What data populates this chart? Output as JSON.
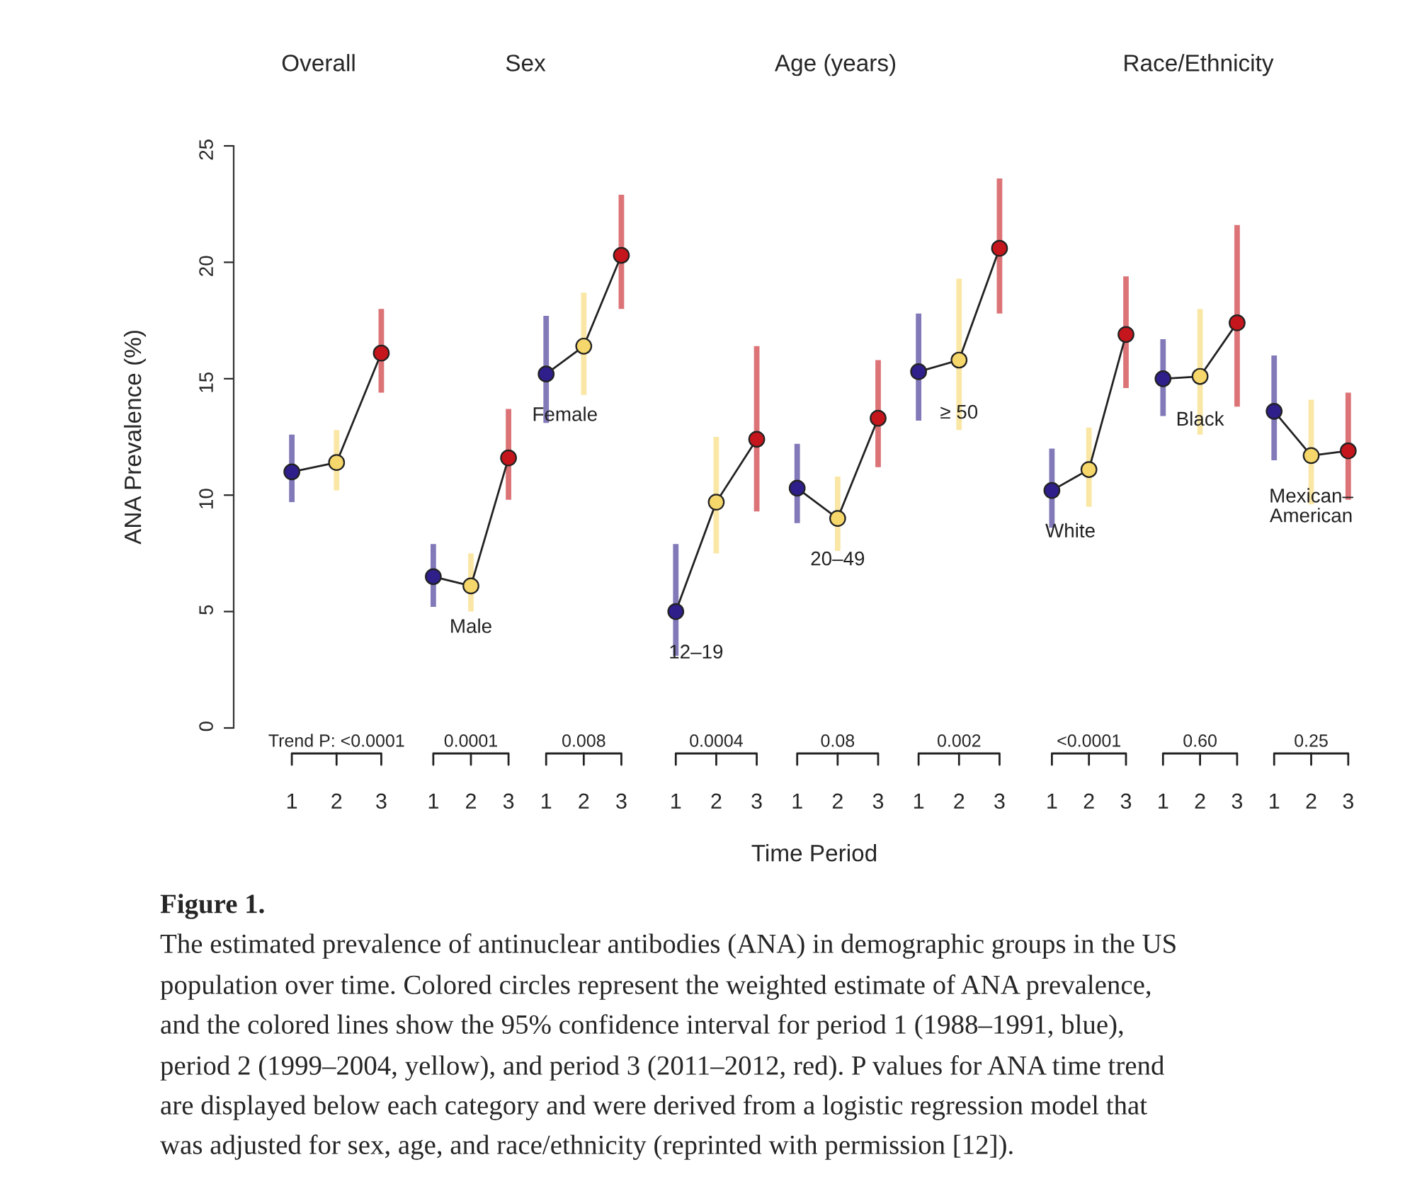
{
  "chart_data": [
    {
      "type": "line",
      "title": "Overall",
      "ylabel": "ANA Prevalence (%)",
      "categories": [
        "1",
        "2",
        "3"
      ],
      "ylim": [
        0,
        25
      ],
      "yticks": [
        0,
        5,
        10,
        15,
        20,
        25
      ],
      "marker": "circle",
      "line_style": "solid",
      "series": [
        {
          "color": "#222222",
          "values": [
            11.0,
            11.4,
            16.1
          ],
          "colors": [
            "#2e1f8a",
            "#f6d76b",
            "#c4161c"
          ],
          "errors": [
            [
              9.7,
              12.6
            ],
            [
              10.2,
              12.8
            ],
            [
              14.4,
              18.0
            ]
          ]
        }
      ],
      "annotations": [
        "Trend P: <0.0001",
        "Figure 1.",
        "The estimated prevalence of antinuclear antibodies (ANA) in demographic groups in the US",
        "population over time. Colored circles represent the weighted estimate of ANA prevalence,",
        "and the colored lines show the 95% confidence interval for period 1 (1988–1991, blue),",
        "period 2 (1999–2004, yellow), and period 3 (2011–2012, red). P values for ANA time trend",
        "are displayed below each category and were derived from a logistic regression model that",
        "was adjusted for sex, age, and race/ethnicity (reprinted with permission [12])."
      ]
    },
    {
      "type": "line",
      "title": "Sex",
      "categories": [
        "1",
        "2",
        "3",
        "1",
        "2",
        "3"
      ],
      "ylim": [
        0,
        25
      ],
      "tick_labels": "x",
      "marker": "circle",
      "line_style": "solid",
      "series": [
        {
          "name": "Male",
          "color": "#222222",
          "values": [
            6.5,
            6.1,
            11.6,
            null,
            null,
            null
          ],
          "colors": [
            "#2e1f8a",
            "#f6d76b",
            "#c4161c",
            null,
            null,
            null
          ],
          "errors": [
            [
              5.2,
              7.9
            ],
            [
              5.0,
              7.5
            ],
            [
              9.8,
              13.7
            ],
            null,
            null,
            null
          ]
        },
        {
          "name": "Female",
          "color": "#222222",
          "values": [
            null,
            null,
            null,
            15.2,
            16.4,
            20.3
          ],
          "colors": [
            null,
            null,
            null,
            "#2e1f8a",
            "#f6d76b",
            "#c4161c"
          ],
          "errors": [
            null,
            null,
            null,
            [
              13.1,
              17.7
            ],
            [
              14.3,
              18.7
            ],
            [
              18.0,
              22.9
            ]
          ]
        }
      ],
      "annotations": [
        "0.0001",
        "0.008"
      ]
    },
    {
      "type": "line",
      "title": "Age (years)",
      "xlabel": "Time Period",
      "categories": [
        "1",
        "2",
        "3",
        "1",
        "2",
        "3",
        "1",
        "2",
        "3"
      ],
      "ylim": [
        0,
        25
      ],
      "tick_labels": "x",
      "marker": "circle",
      "line_style": "solid",
      "series": [
        {
          "name": "12–19",
          "color": "#222222",
          "values": [
            5.0,
            9.7,
            12.4,
            null,
            null,
            null,
            null,
            null,
            null
          ],
          "colors": [
            "#2e1f8a",
            "#f6d76b",
            "#c4161c",
            null,
            null,
            null,
            null,
            null,
            null
          ],
          "errors": [
            [
              3.1,
              7.9
            ],
            [
              7.5,
              12.5
            ],
            [
              9.3,
              16.4
            ],
            null,
            null,
            null,
            null,
            null,
            null
          ]
        },
        {
          "name": "20–49",
          "color": "#222222",
          "values": [
            null,
            null,
            null,
            10.3,
            9.0,
            13.3,
            null,
            null,
            null
          ],
          "colors": [
            null,
            null,
            null,
            "#2e1f8a",
            "#f6d76b",
            "#c4161c",
            null,
            null,
            null
          ],
          "errors": [
            null,
            null,
            null,
            [
              8.8,
              12.2
            ],
            [
              7.6,
              10.8
            ],
            [
              11.2,
              15.8
            ],
            null,
            null,
            null
          ]
        },
        {
          "name": "≥ 50",
          "color": "#222222",
          "values": [
            null,
            null,
            null,
            null,
            null,
            null,
            15.3,
            15.8,
            20.6
          ],
          "colors": [
            null,
            null,
            null,
            null,
            null,
            null,
            "#2e1f8a",
            "#f6d76b",
            "#c4161c"
          ],
          "errors": [
            null,
            null,
            null,
            null,
            null,
            null,
            [
              13.2,
              17.8
            ],
            [
              12.8,
              19.3
            ],
            [
              17.8,
              23.6
            ]
          ]
        }
      ],
      "annotations": [
        "0.0004",
        "0.08",
        "0.002"
      ]
    },
    {
      "type": "line",
      "title": "Race/Ethnicity",
      "categories": [
        "1",
        "2",
        "3",
        "1",
        "2",
        "3",
        "1",
        "2",
        "3"
      ],
      "ylim": [
        0,
        25
      ],
      "tick_labels": "x",
      "marker": "circle",
      "line_style": "solid",
      "series": [
        {
          "name": "White",
          "color": "#222222",
          "values": [
            10.2,
            11.1,
            16.9,
            null,
            null,
            null,
            null,
            null,
            null
          ],
          "colors": [
            "#2e1f8a",
            "#f6d76b",
            "#c4161c",
            null,
            null,
            null,
            null,
            null,
            null
          ],
          "errors": [
            [
              8.6,
              12.0
            ],
            [
              9.5,
              12.9
            ],
            [
              14.6,
              19.4
            ],
            null,
            null,
            null,
            null,
            null,
            null
          ]
        },
        {
          "name": "Black",
          "color": "#222222",
          "values": [
            null,
            null,
            null,
            15.0,
            15.1,
            17.4,
            null,
            null,
            null
          ],
          "colors": [
            null,
            null,
            null,
            "#2e1f8a",
            "#f6d76b",
            "#c4161c",
            null,
            null,
            null
          ],
          "errors": [
            null,
            null,
            null,
            [
              13.4,
              16.7
            ],
            [
              12.6,
              18.0
            ],
            [
              13.8,
              21.6
            ],
            null,
            null,
            null
          ]
        },
        {
          "name": "Mexican–American",
          "color": "#222222",
          "values": [
            null,
            null,
            null,
            null,
            null,
            null,
            13.6,
            11.7,
            11.9
          ],
          "colors": [
            null,
            null,
            null,
            null,
            null,
            null,
            "#2e1f8a",
            "#f6d76b",
            "#c4161c"
          ],
          "errors": [
            null,
            null,
            null,
            null,
            null,
            null,
            [
              11.5,
              16.0
            ],
            [
              9.6,
              14.1
            ],
            [
              9.8,
              14.4
            ]
          ]
        }
      ],
      "annotations": [
        "<0.0001",
        "0.60",
        "0.25"
      ]
    }
  ]
}
